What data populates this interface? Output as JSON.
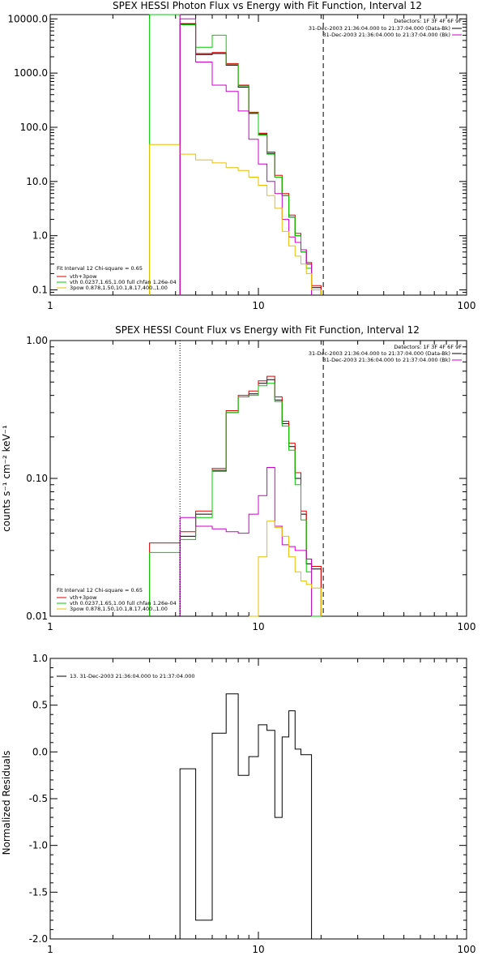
{
  "chart_data": [
    {
      "type": "line",
      "title": "SPEX HESSI Photon Flux vs Energy with Fit Function, Interval 12",
      "xlabel": "",
      "ylabel": "",
      "xscale": "log",
      "yscale": "log",
      "xlim": [
        1,
        100
      ],
      "ylim": [
        0.08,
        12000
      ],
      "xticks": [
        1,
        10,
        100
      ],
      "xtick_labels": [
        "1",
        "10",
        "100"
      ],
      "yticks": [
        0.1,
        1,
        10,
        100,
        1000,
        10000
      ],
      "ytick_labels": [
        "0.1",
        "1.0",
        "10.0",
        "100.0",
        "1000.0",
        "10000.0"
      ],
      "vlines": [
        {
          "x": 4.2,
          "style": "solid",
          "color": "#cc00cc"
        },
        {
          "x": 20.5,
          "style": "dashed",
          "color": "#000000"
        }
      ],
      "header": [
        "Detectors: 1F 3F 4F 6F 9F",
        "31-Dec-2003 21:36:04.000 to 21:37:04.000 (Data-Bk)",
        "31-Dec-2003 21:36:04.000 to 21:37:04.000 (Bk)"
      ],
      "legend_title": "Fit Interval 12    Chi-square = 0.65",
      "legend": [
        "vth+3pow",
        "vth 0.0237,1.65,1.00  full chfan 1.26e-04",
        "3pow 0.878,1.50,10.1,8.17,400.,1.00"
      ],
      "bin_edges": [
        3,
        4.2,
        5,
        6,
        7,
        8,
        9,
        10,
        11,
        12,
        13,
        14,
        15,
        16,
        17,
        18,
        20,
        22
      ],
      "series": [
        {
          "color": "#000000",
          "values": [
            null,
            8000,
            2200,
            2300,
            1400,
            550,
            180,
            75,
            33,
            12,
            5.5,
            2.2,
            1.0,
            0.5,
            0.3,
            0.11,
            null
          ]
        },
        {
          "color": "#e00000",
          "values": [
            null,
            8200,
            2300,
            2400,
            1500,
            600,
            190,
            78,
            35,
            13,
            6.0,
            2.4,
            1.1,
            0.55,
            0.32,
            0.12,
            null
          ]
        },
        {
          "color": "#00cc00",
          "values": [
            12000,
            7800,
            3000,
            5000,
            1450,
            580,
            185,
            72,
            32,
            12,
            5.5,
            2.2,
            1.0,
            0.5,
            0.25,
            null,
            null
          ]
        },
        {
          "color": "#cc00cc",
          "values": [
            null,
            10000,
            1600,
            600,
            460,
            200,
            60,
            21,
            10,
            6,
            2,
            0.95,
            0.75,
            0.55,
            0.3,
            null,
            null
          ]
        },
        {
          "color": "#e6c000",
          "values": [
            48,
            32,
            25,
            22,
            18,
            16,
            12,
            8.5,
            5.5,
            3.2,
            1.2,
            0.65,
            0.42,
            0.3,
            0.2,
            0.1,
            null
          ]
        }
      ]
    },
    {
      "type": "line",
      "title": "SPEX HESSI Count Flux vs Energy with Fit Function, Interval 12",
      "xlabel": "",
      "ylabel": "counts s⁻¹ cm⁻² keV⁻¹",
      "xscale": "log",
      "yscale": "log",
      "xlim": [
        1,
        100
      ],
      "ylim": [
        0.01,
        1.0
      ],
      "xticks": [
        1,
        10,
        100
      ],
      "xtick_labels": [
        "1",
        "10",
        "100"
      ],
      "yticks": [
        0.01,
        0.1,
        1.0
      ],
      "ytick_labels": [
        "0.01",
        "0.10",
        "1.00"
      ],
      "vlines": [
        {
          "x": 4.2,
          "style": "dotted",
          "color": "#000000"
        },
        {
          "x": 20.5,
          "style": "dashed",
          "color": "#000000"
        }
      ],
      "header": [
        "Detectors: 1F 3F 4F 6F 9F",
        "31-Dec-2003 21:36:04.000 to 21:37:04.000 (Data-Bk)",
        "31-Dec-2003 21:36:04.000 to 21:37:04.000 (Bk)"
      ],
      "legend_title": "Fit Interval 12    Chi-square = 0.65",
      "legend": [
        "vth+3pow",
        "vth 0.0237,1.65,1.00  full chfan 1.26e-04",
        "3pow 0.878,1.50,10.1,8.17,400.,1.00"
      ],
      "bin_edges": [
        3,
        4.2,
        5,
        6,
        7,
        8,
        9,
        10,
        11,
        12,
        13,
        14,
        15,
        16,
        17,
        18,
        20,
        22
      ],
      "series": [
        {
          "color": "#000000",
          "values": [
            null,
            0.038,
            0.055,
            0.113,
            0.3,
            0.39,
            0.41,
            0.49,
            0.52,
            0.37,
            0.25,
            0.17,
            0.1,
            0.055,
            0.024,
            0.022,
            null
          ]
        },
        {
          "color": "#e00000",
          "values": [
            0.034,
            0.041,
            0.058,
            0.118,
            0.31,
            0.4,
            0.43,
            0.51,
            0.55,
            0.39,
            0.26,
            0.18,
            0.11,
            0.058,
            0.026,
            0.023,
            null
          ]
        },
        {
          "color": "#00cc00",
          "values": [
            0.029,
            0.036,
            0.052,
            0.115,
            0.3,
            0.39,
            0.4,
            0.47,
            0.49,
            0.36,
            0.24,
            0.16,
            0.09,
            0.05,
            0.021,
            0.01,
            null
          ]
        },
        {
          "color": "#cc00cc",
          "values": [
            null,
            0.052,
            0.045,
            0.043,
            0.041,
            0.04,
            0.055,
            0.075,
            0.12,
            0.045,
            0.033,
            0.032,
            0.03,
            0.03,
            0.026,
            null,
            null
          ]
        },
        {
          "color": "#e6c000",
          "values": [
            null,
            null,
            null,
            null,
            null,
            null,
            0.008,
            0.027,
            0.049,
            0.044,
            0.038,
            0.027,
            0.021,
            0.018,
            0.017,
            0.016,
            null
          ]
        }
      ]
    },
    {
      "type": "line",
      "title": "",
      "xlabel": "",
      "ylabel": "Normalized Residuals",
      "xscale": "log",
      "yscale": "linear",
      "xlim": [
        1,
        100
      ],
      "ylim": [
        -2.0,
        1.0
      ],
      "xticks": [
        1,
        10,
        100
      ],
      "xtick_labels": [
        "1",
        "10",
        "100"
      ],
      "yticks": [
        1.0,
        0.5,
        0.0,
        -0.5,
        -1.0,
        -1.5,
        -2.0
      ],
      "ytick_labels": [
        "1.0",
        "0.5",
        "0.0",
        "-0.5",
        "-1.0",
        "-1.5",
        "-2.0"
      ],
      "legend": [
        "13. 31-Dec-2003 21:36:04.000 to 21:37:04.000"
      ],
      "bin_edges": [
        4.2,
        5,
        6,
        7,
        8,
        9,
        10,
        11,
        12,
        13,
        14,
        15,
        16,
        17,
        18,
        20
      ],
      "series": [
        {
          "color": "#000000",
          "values": [
            -0.18,
            -1.8,
            0.2,
            0.62,
            -0.25,
            -0.05,
            0.29,
            0.23,
            -0.7,
            0.16,
            0.44,
            0.03,
            -0.03,
            -0.03,
            -2.1
          ]
        }
      ]
    }
  ]
}
